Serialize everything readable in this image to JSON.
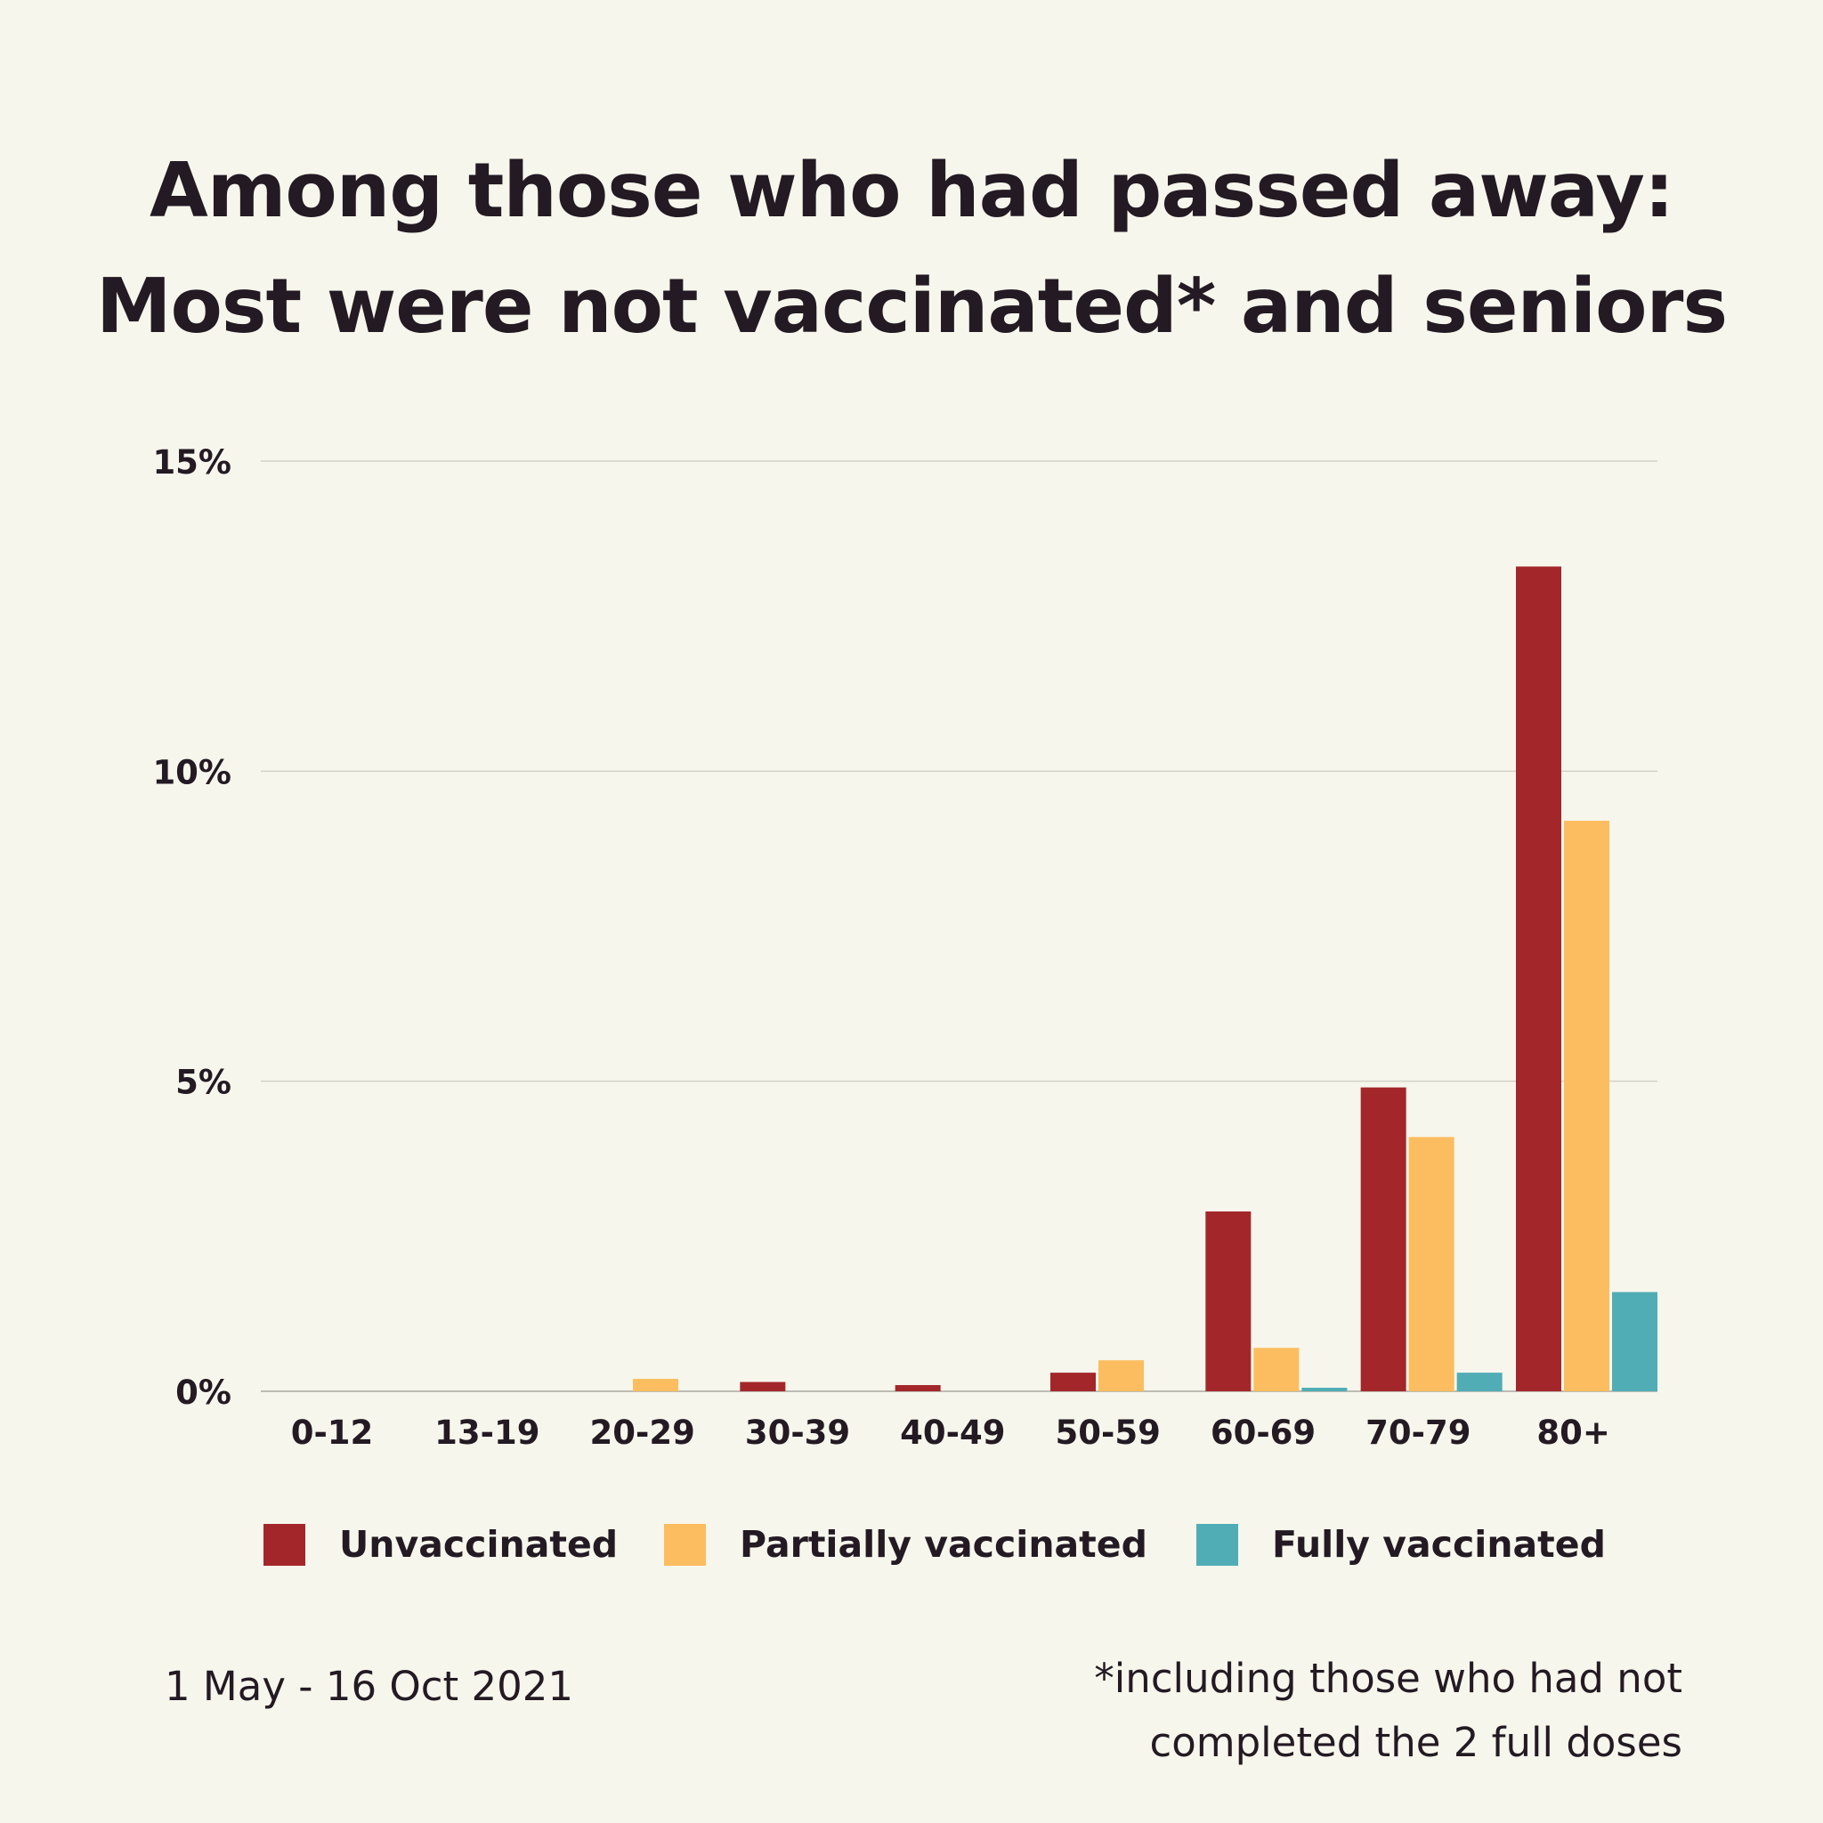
{
  "title_lines": [
    "Among those who had passed away:",
    "Most were not vaccinated* and seniors"
  ],
  "footer": {
    "date_range": "1 May - 16 Oct 2021",
    "footnote_lines": [
      "*including those who had not",
      "completed the 2 full doses"
    ]
  },
  "chart_data": {
    "type": "bar",
    "title": "Among those who had passed away: Most were not vaccinated* and seniors",
    "xlabel": "",
    "ylabel": "",
    "ylim": [
      0,
      15
    ],
    "yticks": [
      0,
      5,
      10,
      15
    ],
    "ytick_labels": [
      "0%",
      "5%",
      "10%",
      "15%"
    ],
    "grid": true,
    "legend_position": "bottom",
    "categories": [
      "0-12",
      "13-19",
      "20-29",
      "30-39",
      "40-49",
      "50-59",
      "60-69",
      "70-79",
      "80+"
    ],
    "series": [
      {
        "name": "Unvaccinated",
        "color": "#a3272a",
        "values": [
          0,
          0,
          0,
          0.15,
          0.1,
          0.3,
          2.9,
          4.9,
          13.3
        ]
      },
      {
        "name": "Partially vaccinated",
        "color": "#fbbd5f",
        "values": [
          0,
          0,
          0.2,
          0,
          0,
          0.5,
          0.7,
          4.1,
          9.2
        ]
      },
      {
        "name": "Fully vaccinated",
        "color": "#51adb5",
        "values": [
          0,
          0,
          0,
          0,
          0,
          0,
          0.05,
          0.3,
          1.6
        ]
      }
    ]
  }
}
